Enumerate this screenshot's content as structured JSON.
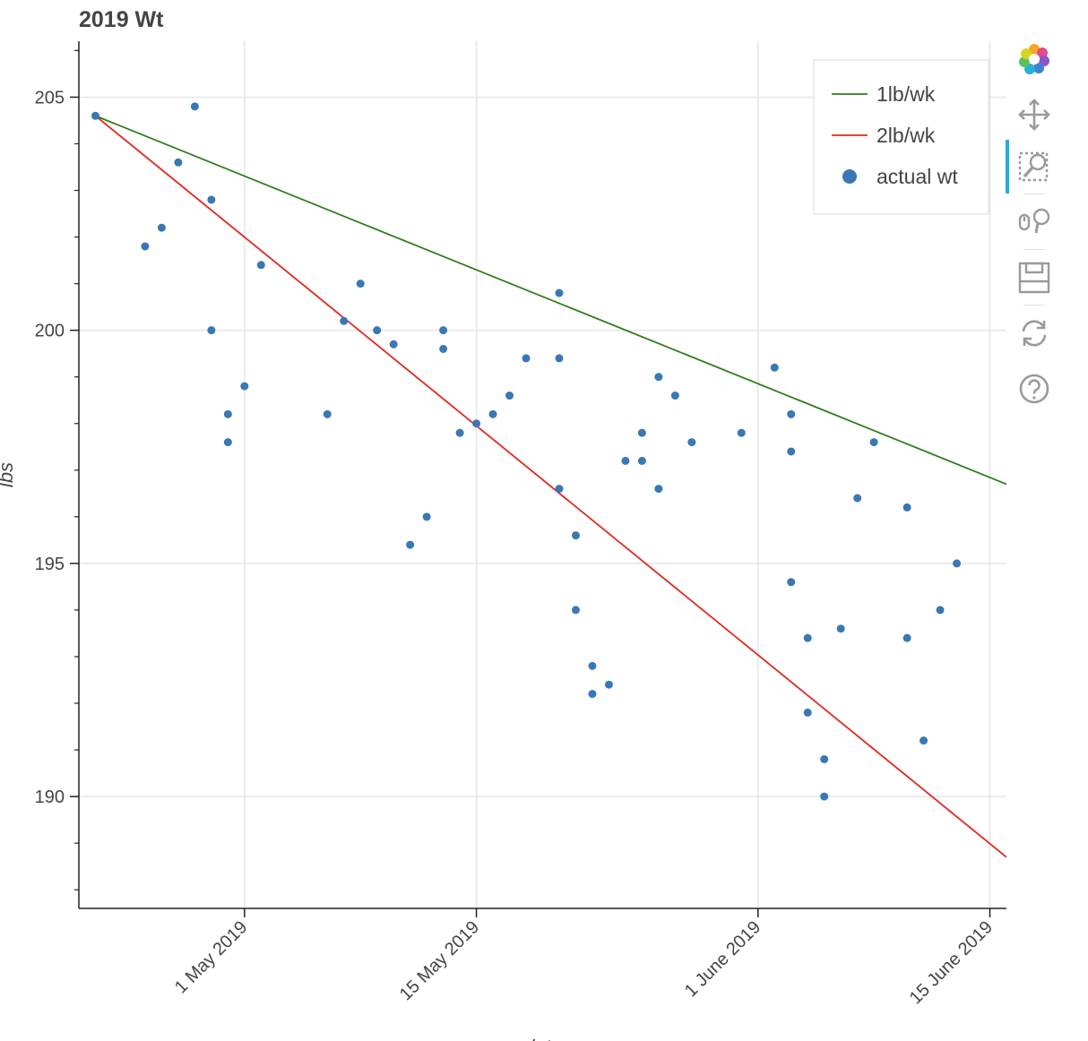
{
  "chart_data": {
    "type": "scatter",
    "title": "2019 Wt",
    "xlabel": "date",
    "ylabel": "lbs",
    "x_type": "datetime",
    "xlim": [
      "2019-04-21",
      "2019-06-16"
    ],
    "ylim": [
      187.6,
      206.2
    ],
    "x_ticks": [
      {
        "value": "2019-05-01",
        "label": "1 May 2019"
      },
      {
        "value": "2019-05-15",
        "label": "15 May 2019"
      },
      {
        "value": "2019-06-01",
        "label": "1 June 2019"
      },
      {
        "value": "2019-06-15",
        "label": "15 June 2019"
      }
    ],
    "y_ticks": [
      190,
      195,
      200,
      205
    ],
    "grid": true,
    "legend_position": "top-right",
    "series": [
      {
        "name": "1lb/wk",
        "type": "line",
        "color": "#2e7d1a",
        "points": [
          [
            "2019-04-22",
            204.6
          ],
          [
            "2019-06-16",
            196.7
          ]
        ]
      },
      {
        "name": "2lb/wk",
        "type": "line",
        "color": "#e1281e",
        "points": [
          [
            "2019-04-22",
            204.6
          ],
          [
            "2019-06-16",
            188.7
          ]
        ]
      },
      {
        "name": "actual wt",
        "type": "scatter",
        "color": "#3a77b5",
        "points": [
          [
            "2019-04-22",
            204.6
          ],
          [
            "2019-04-25",
            201.8
          ],
          [
            "2019-04-26",
            202.2
          ],
          [
            "2019-04-27",
            203.6
          ],
          [
            "2019-04-28",
            204.8
          ],
          [
            "2019-04-29",
            202.8
          ],
          [
            "2019-04-29",
            200.0
          ],
          [
            "2019-04-30",
            198.2
          ],
          [
            "2019-04-30",
            197.6
          ],
          [
            "2019-05-01",
            198.8
          ],
          [
            "2019-05-02",
            201.4
          ],
          [
            "2019-05-06",
            198.2
          ],
          [
            "2019-05-07",
            200.2
          ],
          [
            "2019-05-08",
            201.0
          ],
          [
            "2019-05-09",
            200.0
          ],
          [
            "2019-05-10",
            199.7
          ],
          [
            "2019-05-11",
            195.4
          ],
          [
            "2019-05-12",
            196.0
          ],
          [
            "2019-05-13",
            200.0
          ],
          [
            "2019-05-13",
            199.6
          ],
          [
            "2019-05-14",
            197.8
          ],
          [
            "2019-05-15",
            198.0
          ],
          [
            "2019-05-16",
            198.2
          ],
          [
            "2019-05-17",
            198.6
          ],
          [
            "2019-05-18",
            199.4
          ],
          [
            "2019-05-20",
            199.4
          ],
          [
            "2019-05-20",
            200.8
          ],
          [
            "2019-05-20",
            196.6
          ],
          [
            "2019-05-21",
            195.6
          ],
          [
            "2019-05-21",
            194.0
          ],
          [
            "2019-05-22",
            192.8
          ],
          [
            "2019-05-22",
            192.2
          ],
          [
            "2019-05-23",
            192.4
          ],
          [
            "2019-05-24",
            197.2
          ],
          [
            "2019-05-25",
            197.8
          ],
          [
            "2019-05-25",
            197.2
          ],
          [
            "2019-05-26",
            199.0
          ],
          [
            "2019-05-26",
            196.6
          ],
          [
            "2019-05-27",
            198.6
          ],
          [
            "2019-05-28",
            197.6
          ],
          [
            "2019-05-31",
            197.8
          ],
          [
            "2019-06-02",
            199.2
          ],
          [
            "2019-06-03",
            198.2
          ],
          [
            "2019-06-03",
            197.4
          ],
          [
            "2019-06-03",
            194.6
          ],
          [
            "2019-06-04",
            193.4
          ],
          [
            "2019-06-04",
            191.8
          ],
          [
            "2019-06-05",
            190.8
          ],
          [
            "2019-06-05",
            190.0
          ],
          [
            "2019-06-06",
            193.6
          ],
          [
            "2019-06-07",
            196.4
          ],
          [
            "2019-06-08",
            197.6
          ],
          [
            "2019-06-10",
            196.2
          ],
          [
            "2019-06-10",
            193.4
          ],
          [
            "2019-06-11",
            191.2
          ],
          [
            "2019-06-12",
            194.0
          ],
          [
            "2019-06-13",
            195.0
          ]
        ]
      }
    ]
  },
  "toolbar": {
    "tools": [
      {
        "name": "bokeh-logo",
        "icon": "bokeh-logo-icon"
      },
      {
        "name": "pan",
        "icon": "pan-icon"
      },
      {
        "name": "box-zoom",
        "icon": "box-zoom-icon",
        "active": true
      },
      {
        "name": "wheel-zoom",
        "icon": "wheel-zoom-icon"
      },
      {
        "name": "save",
        "icon": "save-icon"
      },
      {
        "name": "reset",
        "icon": "reset-icon"
      },
      {
        "name": "help",
        "icon": "help-icon"
      }
    ]
  }
}
